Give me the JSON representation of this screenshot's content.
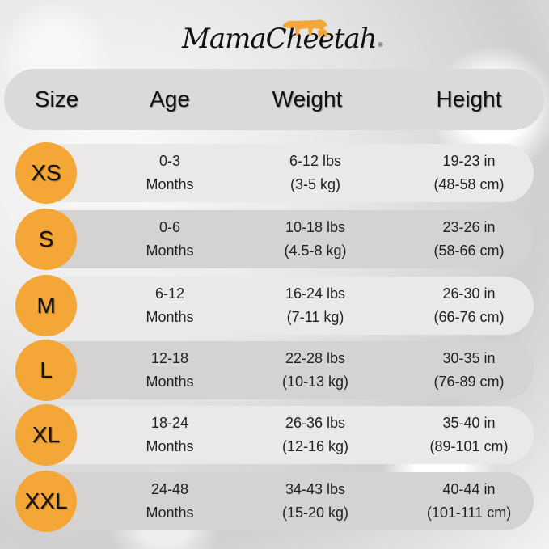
{
  "brand": {
    "logo_text": "MamaCheetah",
    "registered": "®"
  },
  "colors": {
    "circle": "#f4a636",
    "row_light": "#ebe9e7",
    "row_dark": "#d5d3d1",
    "header": "#dcdad8"
  },
  "header": {
    "size": "Size",
    "age": "Age",
    "weight": "Weight",
    "height": "Height"
  },
  "rows": [
    {
      "size": "XS",
      "age": [
        "0-3",
        "Months"
      ],
      "weight": [
        "6-12 lbs",
        "(3-5 kg)"
      ],
      "height": [
        "19-23 in",
        "(48-58 cm)"
      ]
    },
    {
      "size": "S",
      "age": [
        "0-6",
        "Months"
      ],
      "weight": [
        "10-18 lbs",
        "(4.5-8 kg)"
      ],
      "height": [
        "23-26 in",
        "(58-66 cm)"
      ]
    },
    {
      "size": "M",
      "age": [
        "6-12",
        "Months"
      ],
      "weight": [
        "16-24 lbs",
        "(7-11 kg)"
      ],
      "height": [
        "26-30 in",
        "(66-76 cm)"
      ]
    },
    {
      "size": "L",
      "age": [
        "12-18",
        "Months"
      ],
      "weight": [
        "22-28 lbs",
        "(10-13 kg)"
      ],
      "height": [
        "30-35 in",
        "(76-89 cm)"
      ]
    },
    {
      "size": "XL",
      "age": [
        "18-24",
        "Months"
      ],
      "weight": [
        "26-36 lbs",
        "(12-16 kg)"
      ],
      "height": [
        "35-40 in",
        "(89-101 cm)"
      ]
    },
    {
      "size": "XXL",
      "age": [
        "24-48",
        "Months"
      ],
      "weight": [
        "34-43 lbs",
        "(15-20 kg)"
      ],
      "height": [
        "40-44 in",
        "(101-111 cm)"
      ]
    }
  ]
}
